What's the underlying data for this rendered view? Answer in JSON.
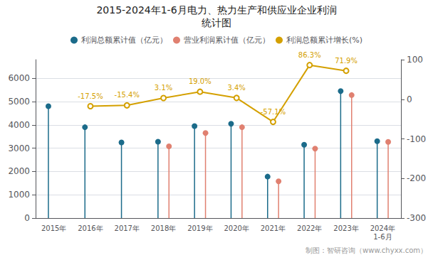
{
  "chart_data": {
    "type": "lollipop",
    "title": "2015-2024年1-6月电力、热力生产和供应业企业利润",
    "subtitle": "统计图",
    "categories": [
      "2015年",
      "2016年",
      "2017年",
      "2018年",
      "2019年",
      "2020年",
      "2021年",
      "2022年",
      "2023年",
      "2024年\n1-6月"
    ],
    "series": [
      {
        "name": "利润总额累计值（亿元）",
        "type": "lollipop",
        "color": "#1b6b8a",
        "values": [
          4800,
          3900,
          3250,
          3280,
          3950,
          4050,
          1780,
          3150,
          5450,
          3300
        ]
      },
      {
        "name": "营业利润累计值（亿元）",
        "type": "lollipop",
        "color": "#e08070",
        "values": [
          null,
          null,
          null,
          3080,
          3650,
          3900,
          1580,
          2980,
          5280,
          3270
        ]
      },
      {
        "name": "利润总额累计增长(%)",
        "type": "line",
        "axis": "y2",
        "color": "#d4a000",
        "marker": "circle",
        "data_labels": true,
        "values": [
          null,
          -17.5,
          -15.4,
          3.1,
          19.0,
          3.4,
          -57.1,
          86.3,
          71.9,
          null
        ],
        "value_labels": [
          null,
          "-17.5%",
          "-15.4%",
          "3.1%",
          "19.0%",
          "3.4%",
          "-57.1%",
          "86.3%",
          "71.9%",
          null
        ]
      }
    ],
    "ylim": [
      0,
      6800
    ],
    "yticks": [
      0,
      1000,
      2000,
      3000,
      4000,
      5000,
      6000
    ],
    "y2lim": [
      -300,
      100
    ],
    "y2ticks": [
      -300,
      -200,
      -100,
      0,
      100
    ],
    "grid": true,
    "legend": "top",
    "annotations": [
      "制图：智研咨询（www.chyxx.com）"
    ]
  }
}
